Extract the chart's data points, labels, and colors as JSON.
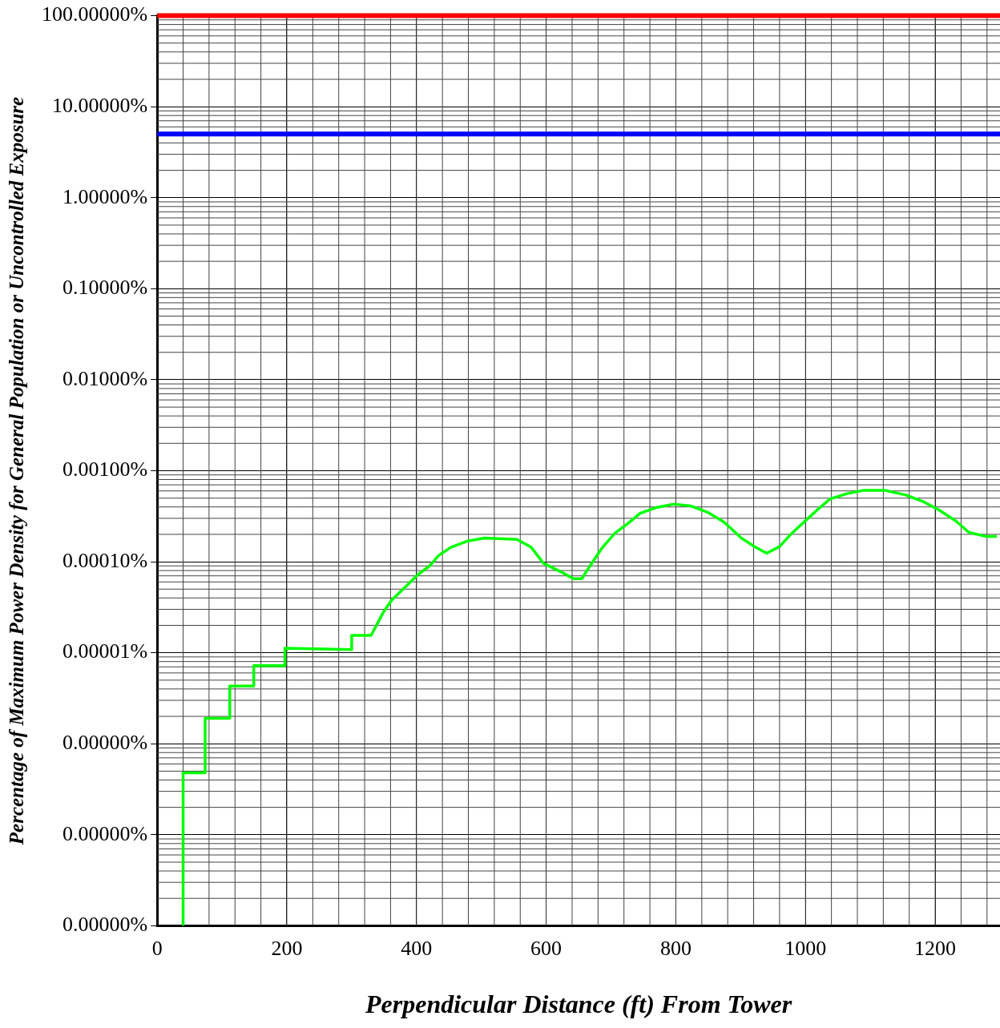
{
  "chart_data": {
    "type": "line",
    "xlabel": "Perpendicular Distance (ft) From Tower",
    "ylabel": "Percentage of Maximum Power Density for General Population or Uncontrolled Exposure",
    "log": "y",
    "grid": true,
    "legend": false,
    "marker": "none",
    "line_style": "solid",
    "xlim": [
      0,
      1300
    ],
    "xticks": [
      0,
      200,
      400,
      600,
      800,
      1000,
      1200
    ],
    "ylim": [
      1e-08,
      100
    ],
    "yticks": [
      {
        "value": 100,
        "label": "100.00000%"
      },
      {
        "value": 10,
        "label": "10.00000%"
      },
      {
        "value": 1,
        "label": "1.00000%"
      },
      {
        "value": 0.1,
        "label": "0.10000%"
      },
      {
        "value": 0.01,
        "label": "0.01000%"
      },
      {
        "value": 0.001,
        "label": "0.00100%"
      },
      {
        "value": 0.0001,
        "label": "0.00010%"
      },
      {
        "value": 1e-05,
        "label": "0.00001%"
      },
      {
        "value": 1e-06,
        "label": "0.00000%"
      },
      {
        "value": 1e-07,
        "label": "0.00000%"
      },
      {
        "value": 1e-08,
        "label": "0.00000%"
      }
    ],
    "ref_lines": [
      {
        "axis": "y",
        "value": 100,
        "color": "#ff0000"
      },
      {
        "axis": "y",
        "value": 5,
        "color": "#0000ff"
      }
    ],
    "series": [
      {
        "color": "#00ff00",
        "x": [
          40,
          40,
          74,
          74,
          112,
          112,
          149,
          149,
          197,
          197,
          300,
          300,
          330,
          349,
          362,
          382,
          401,
          421,
          434,
          453,
          479,
          505,
          555,
          577,
          596,
          622,
          642,
          655,
          668,
          687,
          706,
          726,
          745,
          771,
          797,
          823,
          849,
          875,
          901,
          921,
          940,
          960,
          979,
          999,
          1018,
          1038,
          1064,
          1090,
          1122,
          1155,
          1181,
          1206,
          1232,
          1252,
          1278,
          1295
        ],
        "values": [
          1e-08,
          4.8e-07,
          4.8e-07,
          1.9e-06,
          1.9e-06,
          4.3e-06,
          4.3e-06,
          7.2e-06,
          7.2e-06,
          1.12e-05,
          1.08e-05,
          1.55e-05,
          1.55e-05,
          2.8e-05,
          3.8e-05,
          5.2e-05,
          7.1e-05,
          9.1e-05,
          0.000117,
          0.000144,
          0.000169,
          0.000182,
          0.000176,
          0.000144,
          9.6e-05,
          7.8e-05,
          6.5e-05,
          6.5e-05,
          9.1e-05,
          0.000144,
          0.000206,
          0.000263,
          0.00034,
          0.000396,
          0.00043,
          0.00041,
          0.00035,
          0.00027,
          0.000182,
          0.000147,
          0.000124,
          0.000147,
          0.000206,
          0.000278,
          0.00037,
          0.00049,
          0.00056,
          0.00061,
          0.00061,
          0.00054,
          0.00046,
          0.00037,
          0.00028,
          0.00021,
          0.00019,
          0.00019
        ]
      }
    ]
  }
}
